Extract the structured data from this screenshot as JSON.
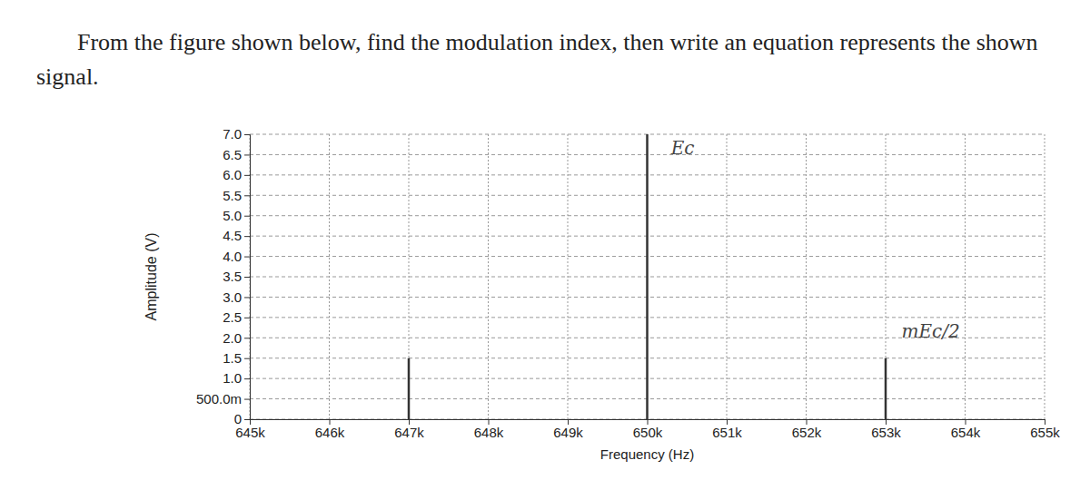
{
  "chart_data": {
    "type": "stem",
    "title": "From the figure shown below, find the modulation index, then write an equation represents the shown signal.",
    "x_label": "Frequency (Hz)",
    "y_label": "Amplitude (V)",
    "x": [
      647000,
      650000,
      653000
    ],
    "values": [
      1.5,
      7.0,
      1.5
    ],
    "color": "#333333",
    "xlim": [
      645000,
      655000
    ],
    "xticks": [
      {
        "value": 645000,
        "label": "645k"
      },
      {
        "value": 646000,
        "label": "646k"
      },
      {
        "value": 647000,
        "label": "647k"
      },
      {
        "value": 648000,
        "label": "648k"
      },
      {
        "value": 649000,
        "label": "649k"
      },
      {
        "value": 650000,
        "label": "650k"
      },
      {
        "value": 651000,
        "label": "651k"
      },
      {
        "value": 652000,
        "label": "652k"
      },
      {
        "value": 653000,
        "label": "653k"
      },
      {
        "value": 654000,
        "label": "654k"
      },
      {
        "value": 655000,
        "label": "655k"
      }
    ],
    "ylim": [
      0,
      7.0
    ],
    "yticks": [
      0,
      {
        "value": 0.5,
        "label": "500.0m"
      },
      {
        "value": 1.0,
        "label": "1.0"
      },
      {
        "value": 1.5,
        "label": "1.5"
      },
      {
        "value": 2.0,
        "label": "2.0"
      },
      {
        "value": 2.5,
        "label": "2.5"
      },
      {
        "value": 3.0,
        "label": "3.0"
      },
      {
        "value": 3.5,
        "label": "3.5"
      },
      {
        "value": 4.0,
        "label": "4.0"
      },
      {
        "value": 4.5,
        "label": "4.5"
      },
      {
        "value": 5.0,
        "label": "5.0"
      },
      {
        "value": 5.5,
        "label": "5.5"
      },
      {
        "value": 6.0,
        "label": "6.0"
      },
      {
        "value": 6.5,
        "label": "6.5"
      },
      {
        "value": 7.0,
        "label": "7.0"
      }
    ],
    "grid": true,
    "annotations": [
      {
        "text": "Ec",
        "x": 650300,
        "y": 6.5
      },
      {
        "text": "mEc/2",
        "x": 653200,
        "y": 2.0
      }
    ]
  }
}
